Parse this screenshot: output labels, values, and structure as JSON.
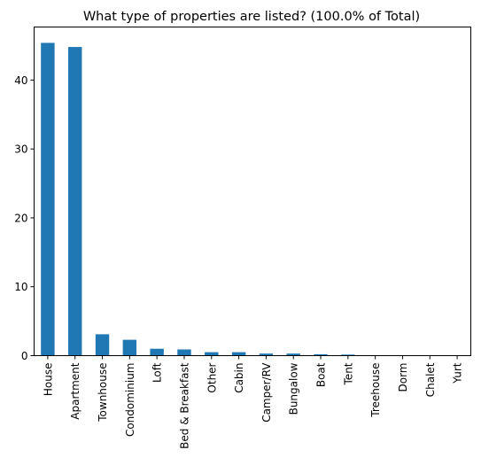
{
  "chart_data": {
    "type": "bar",
    "title": "What type of properties are listed? (100.0% of Total)",
    "xlabel": "",
    "ylabel": "",
    "categories": [
      "House",
      "Apartment",
      "Townhouse",
      "Condominium",
      "Loft",
      "Bed & Breakfast",
      "Other",
      "Cabin",
      "Camper/RV",
      "Bungalow",
      "Boat",
      "Tent",
      "Treehouse",
      "Dorm",
      "Chalet",
      "Yurt"
    ],
    "values": [
      45.4,
      44.8,
      3.1,
      2.3,
      1.0,
      0.9,
      0.5,
      0.5,
      0.3,
      0.3,
      0.2,
      0.15,
      0.05,
      0.03,
      0.02,
      0.01
    ],
    "ylim": [
      0,
      47.7
    ],
    "yticks": [
      0,
      10,
      20,
      30,
      40
    ],
    "grid": false,
    "bar_color": "#1f77b4"
  }
}
